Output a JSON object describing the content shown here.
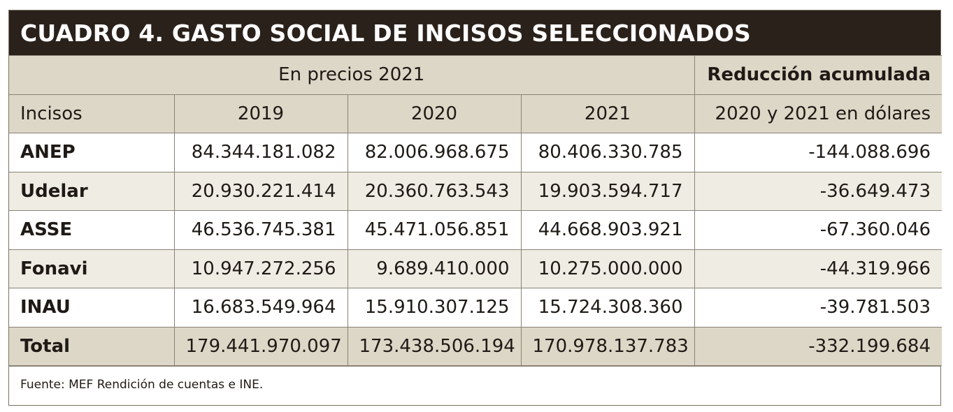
{
  "title": "CUADRO 4. GASTO SOCIAL DE INCISOS SELECCIONADOS",
  "header": {
    "group_label": "En precios 2021",
    "reduction_label": "Reducción acumulada",
    "col_incisos": "Incisos",
    "col_2019": "2019",
    "col_2020": "2020",
    "col_2021": "2021",
    "col_reduction": "2020 y 2021 en dólares"
  },
  "rows": [
    {
      "inciso": "ANEP",
      "y2019": "84.344.181.082",
      "y2020": "82.006.968.675",
      "y2021": "80.406.330.785",
      "reduction": "-144.088.696"
    },
    {
      "inciso": "Udelar",
      "y2019": "20.930.221.414",
      "y2020": "20.360.763.543",
      "y2021": "19.903.594.717",
      "reduction": "-36.649.473"
    },
    {
      "inciso": "ASSE",
      "y2019": "46.536.745.381",
      "y2020": "45.471.056.851",
      "y2021": "44.668.903.921",
      "reduction": "-67.360.046"
    },
    {
      "inciso": "Fonavi",
      "y2019": "10.947.272.256",
      "y2020": "9.689.410.000",
      "y2021": "10.275.000.000",
      "reduction": "-44.319.966"
    },
    {
      "inciso": "INAU",
      "y2019": "16.683.549.964",
      "y2020": "15.910.307.125",
      "y2021": "15.724.308.360",
      "reduction": "-39.781.503"
    }
  ],
  "total": {
    "inciso": "Total",
    "y2019": "179.441.970.097",
    "y2020": "173.438.506.194",
    "y2021": "170.978.137.783",
    "reduction": "-332.199.684"
  },
  "source": "Fuente: MEF Rendición de cuentas e INE.",
  "colors": {
    "title_bg": "#2a211b",
    "header_bg": "#ddd7c7",
    "row_shade": "#efece3"
  }
}
